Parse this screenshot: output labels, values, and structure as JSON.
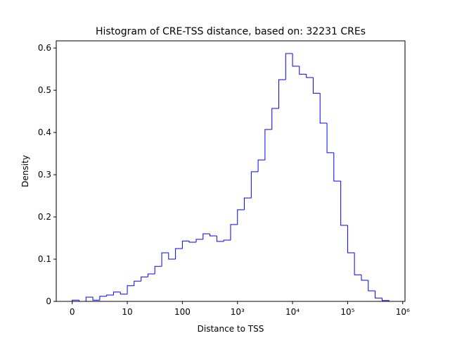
{
  "chart_data": {
    "type": "histogram",
    "title": "Histogram of CRE-TSS distance, based on: 32231 CREs",
    "xlabel": "Distance to TSS",
    "ylabel": "Density",
    "xscale": "symlog",
    "linthresh": 10,
    "color": "#0000ff",
    "bins": [
      0,
      1.25,
      2.5,
      3.75,
      5,
      6.25,
      7.5,
      8.75,
      10,
      13.3,
      17.8,
      23.7,
      31.6,
      42.2,
      56.2,
      75,
      100,
      133,
      178,
      237,
      316,
      422,
      562,
      750,
      1000,
      1330,
      1780,
      2370,
      3160,
      4220,
      5620,
      7500,
      10000,
      13300,
      17800,
      23700,
      31600,
      42200,
      56200,
      75000,
      100000,
      133000,
      178000,
      237000,
      316000,
      422000,
      562000
    ],
    "values": [
      0.003,
      0,
      0.01,
      0.003,
      0.012,
      0.015,
      0.022,
      0.017,
      0.037,
      0.048,
      0.058,
      0.065,
      0.083,
      0.115,
      0.1,
      0.125,
      0.143,
      0.14,
      0.147,
      0.16,
      0.155,
      0.142,
      0.145,
      0.182,
      0.217,
      0.245,
      0.307,
      0.335,
      0.407,
      0.457,
      0.525,
      0.587,
      0.557,
      0.538,
      0.53,
      0.493,
      0.422,
      0.352,
      0.285,
      0.18,
      0.115,
      0.063,
      0.05,
      0.025,
      0.008,
      0.002
    ],
    "xlim": [
      -2.9,
      1100000
    ],
    "xticks": [
      0,
      10,
      100,
      {
        "value": 1000,
        "label": "10³"
      },
      {
        "value": 10000,
        "label": "10⁴"
      },
      {
        "value": 100000,
        "label": "10⁵"
      },
      {
        "value": 1000000,
        "label": "10⁶"
      }
    ],
    "ylim": [
      0,
      0.617
    ],
    "yticks": [
      0.0,
      0.1,
      0.2,
      0.3,
      0.4,
      0.5,
      0.6
    ]
  }
}
